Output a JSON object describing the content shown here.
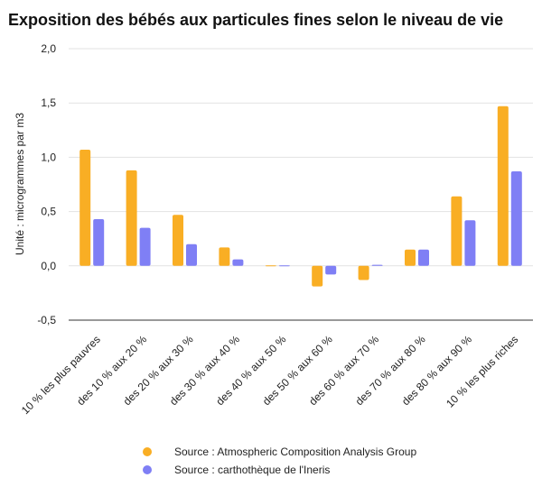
{
  "chart_data": {
    "type": "bar",
    "title": "Exposition des bébés aux particules fines selon le niveau de vie",
    "ylabel": "Unité : microgrammes par m3",
    "xlabel": "",
    "ylim": [
      -0.5,
      2.0
    ],
    "yticks": [
      2.0,
      1.5,
      1.0,
      0.5,
      0.0,
      -0.5
    ],
    "ytick_labels": [
      "2,0",
      "1,5",
      "1,0",
      "0,5",
      "0,0",
      "-0,5"
    ],
    "grid": true,
    "legend_position": "bottom",
    "categories": [
      "10 % les plus pauvres",
      "des 10 % aux 20 %",
      "des 20 % aux 30 %",
      "des 30 % aux 40 %",
      "des 40 % aux 50 %",
      "des 50 % aux 60 %",
      "des 60 % aux 70 %",
      "des 70 % aux 80 %",
      "des 80 % aux 90 %",
      "10 % les plus riches"
    ],
    "series": [
      {
        "name": "Source : Atmospheric Composition Analysis Group",
        "color": "#f9ae24",
        "values": [
          1.07,
          0.88,
          0.47,
          0.17,
          0.0,
          -0.19,
          -0.13,
          0.15,
          0.64,
          1.47
        ]
      },
      {
        "name": "Source : carthothèque de l'Ineris",
        "color": "#7f7ff5",
        "values": [
          0.43,
          0.35,
          0.2,
          0.06,
          0.0,
          -0.08,
          0.01,
          0.15,
          0.42,
          0.87
        ]
      }
    ]
  }
}
